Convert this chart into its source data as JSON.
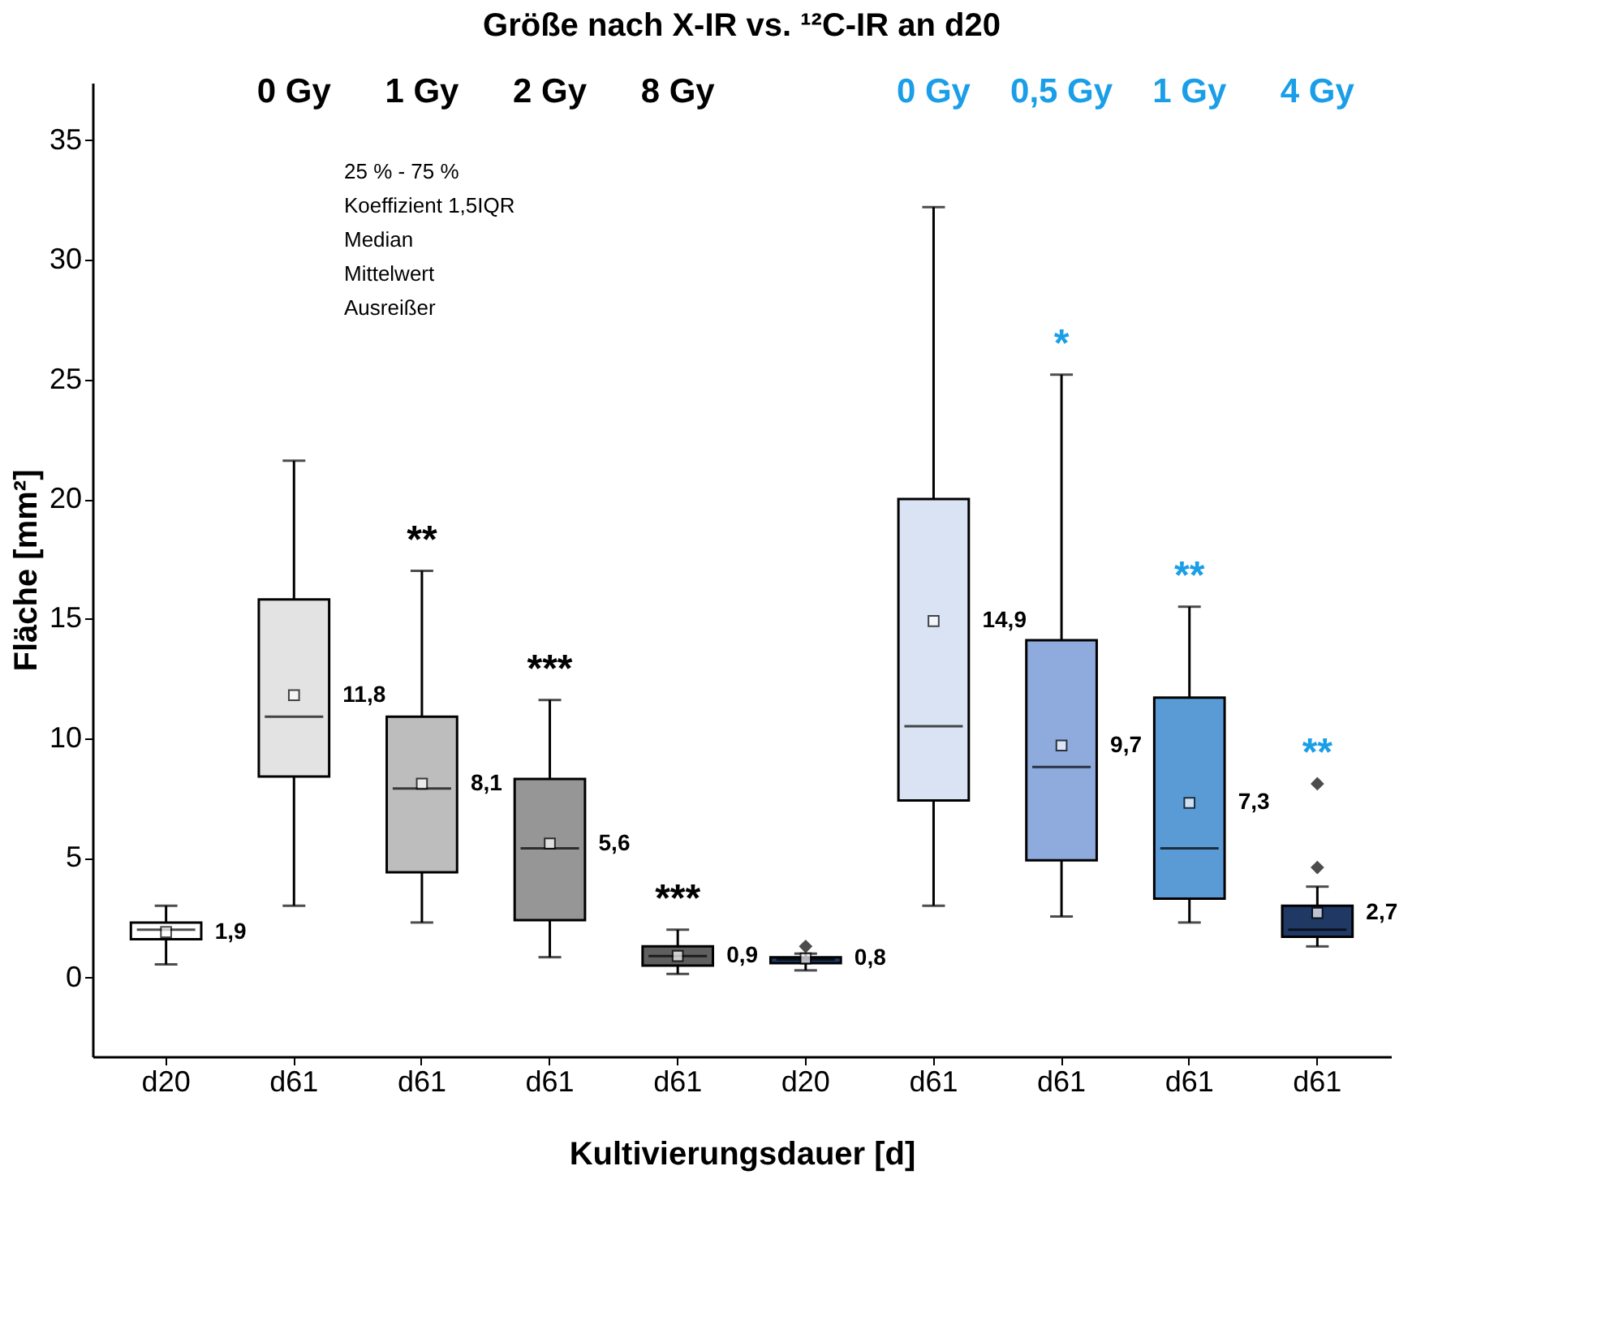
{
  "chart_data": {
    "type": "box",
    "title": "Größe nach X-IR vs. ¹²C-IR an d20",
    "xlabel": "Kultivierungsdauer [d]",
    "ylabel": "Fläche [mm²]",
    "categories": [
      "d20",
      "d61",
      "d61",
      "d61",
      "d61",
      "d20",
      "d61",
      "d61",
      "d61",
      "d61"
    ],
    "colors": [
      "#ffffff",
      "#e3e3e3",
      "#bdbdbd",
      "#969696",
      "#5f5f5f",
      "#1f3864",
      "#dae3f3",
      "#8faadc",
      "#5b9bd5",
      "#203864"
    ],
    "boxes": [
      {
        "low": 0.55,
        "q1": 1.6,
        "median": 2.0,
        "q3": 2.3,
        "high": 3.0,
        "mean": 1.9
      },
      {
        "low": 3.0,
        "q1": 8.4,
        "median": 10.9,
        "q3": 15.8,
        "high": 21.6,
        "mean": 11.8
      },
      {
        "low": 2.3,
        "q1": 4.4,
        "median": 7.9,
        "q3": 10.9,
        "high": 17.0,
        "mean": 8.1
      },
      {
        "low": 0.85,
        "q1": 2.4,
        "median": 5.4,
        "q3": 8.3,
        "high": 11.6,
        "mean": 5.6
      },
      {
        "low": 0.15,
        "q1": 0.5,
        "median": 0.9,
        "q3": 1.3,
        "high": 2.0,
        "mean": 0.9
      },
      {
        "low": 0.3,
        "q1": 0.6,
        "median": 0.75,
        "q3": 0.85,
        "high": 1.0,
        "mean": 0.8,
        "outliers": [
          1.3
        ]
      },
      {
        "low": 3.0,
        "q1": 7.4,
        "median": 10.5,
        "q3": 20.0,
        "high": 32.2,
        "mean": 14.9
      },
      {
        "low": 2.55,
        "q1": 4.9,
        "median": 8.8,
        "q3": 14.1,
        "high": 25.2,
        "mean": 9.7
      },
      {
        "low": 2.3,
        "q1": 3.3,
        "median": 5.4,
        "q3": 11.7,
        "high": 15.5,
        "mean": 7.3
      },
      {
        "low": 1.3,
        "q1": 1.7,
        "median": 2.0,
        "q3": 3.0,
        "high": 3.8,
        "mean": 2.7,
        "outliers": [
          4.6,
          8.1
        ]
      }
    ],
    "ylim": [
      -3.3,
      37.4
    ],
    "yticks": [
      0,
      5,
      10,
      15,
      20,
      25,
      30,
      35
    ],
    "grid": false,
    "annotations": [
      "25 % - 75 %",
      "Koeffizient 1,5IQR",
      "Median",
      "Mittelwert",
      "Ausreißer",
      "0 Gy",
      "1 Gy",
      "2 Gy",
      "8 Gy",
      "0 Gy",
      "0,5 Gy",
      "1 Gy",
      "4 Gy",
      "**",
      "***",
      "***",
      "*",
      "**",
      "**"
    ],
    "value_labels": [
      "1,9",
      "11,8",
      "8,1",
      "5,6",
      "0,9",
      "0,8",
      "14,9",
      "9,7",
      "7,3",
      "2,7"
    ]
  }
}
